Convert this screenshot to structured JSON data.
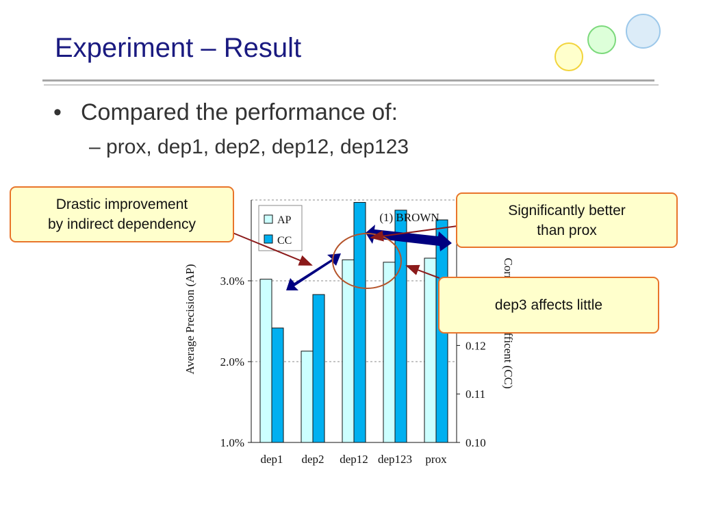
{
  "slide": {
    "title": "Experiment – Result",
    "bullet": "Compared the performance of:",
    "sub_bullet": "– prox, dep1, dep2, dep12, dep123",
    "bullet_marker": "•"
  },
  "callouts": {
    "drastic_line1": "Drastic improvement",
    "drastic_line2": "by indirect dependency",
    "significant_line1": "Significantly better",
    "significant_line2": "than prox",
    "dep3": "dep3 affects little"
  },
  "colors": {
    "title": "#1a1a80",
    "ap_bar": "#ccffff",
    "cc_bar": "#00b0f0",
    "callout_fill": "#ffffcc",
    "callout_border": "#e8742a",
    "arrow_dark": "#000080",
    "annotation_line": "#8b1a1a"
  },
  "chart_data": {
    "type": "bar",
    "title": "(1) BROWN",
    "categories": [
      "dep1",
      "dep2",
      "dep12",
      "dep123",
      "prox"
    ],
    "series": [
      {
        "name": "AP",
        "axis": "left",
        "values": [
          3.02,
          2.13,
          3.26,
          3.23,
          3.28
        ]
      },
      {
        "name": "CC",
        "axis": "right",
        "values": [
          0.1236,
          0.1305,
          0.1495,
          0.1479,
          0.1459
        ]
      }
    ],
    "ylabel_left": "Average Precision (AP)",
    "ylabel_right": "Correlation Coefficent (CC)",
    "ylim_left": [
      1.0,
      4.0
    ],
    "ylim_right": [
      0.1,
      0.15
    ],
    "left_ticks": [
      1.0,
      2.0,
      3.0
    ],
    "left_tick_labels": [
      "1.0%",
      "2.0%",
      "3.0%"
    ],
    "right_ticks": [
      0.1,
      0.11,
      0.12
    ],
    "right_tick_labels": [
      "0.10",
      "0.11",
      "0.12"
    ],
    "grid": "horizontal dashed",
    "legend": "top-left"
  }
}
